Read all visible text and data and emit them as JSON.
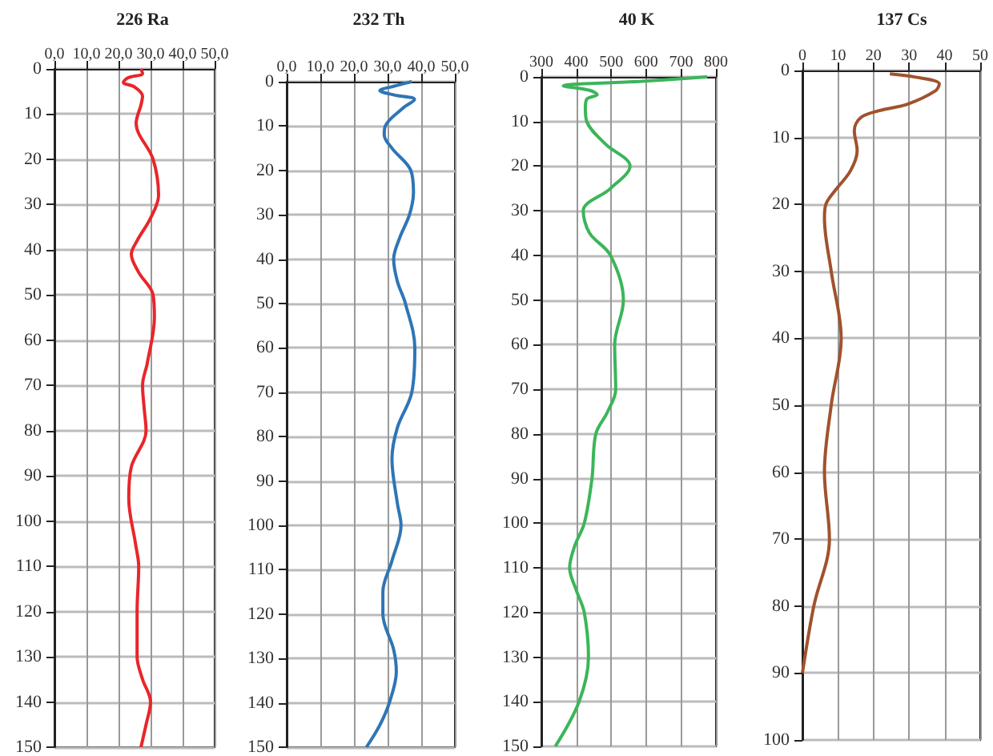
{
  "chart_data": [
    {
      "type": "line",
      "title": "226 Ra",
      "xlim": [
        0,
        50
      ],
      "xticks": [
        {
          "value": 0,
          "label": "0,0"
        },
        {
          "value": 10,
          "label": "10,0"
        },
        {
          "value": 20,
          "label": "20,0"
        },
        {
          "value": 30,
          "label": "30,0"
        },
        {
          "value": 40,
          "label": "40,0"
        },
        {
          "value": 50,
          "label": "50,0"
        }
      ],
      "ylim": [
        150,
        0
      ],
      "yticks": [
        0,
        10,
        20,
        30,
        40,
        50,
        60,
        70,
        80,
        90,
        100,
        110,
        120,
        130,
        140,
        150
      ],
      "grid": true,
      "marker": "none",
      "series": [
        {
          "color": "#e8262b",
          "x": [
            27,
            27.5,
            22.9,
            21.5,
            25,
            27.5,
            27,
            25.5,
            30.8,
            32.5,
            30,
            25.8,
            24,
            26.3,
            30.8,
            31.2,
            29,
            27.5,
            28,
            28.6,
            24,
            23.2,
            25.3,
            26.3,
            25.8,
            25.8,
            27.5,
            30,
            28.6,
            27
          ],
          "values": [
            0,
            1,
            2,
            3,
            4,
            6,
            8,
            12,
            20,
            28,
            33,
            38,
            41,
            45,
            50,
            55,
            65,
            70,
            75,
            80,
            88,
            95,
            105,
            110,
            120,
            130,
            135,
            140,
            145,
            150
          ]
        }
      ]
    },
    {
      "type": "line",
      "title": "232 Th",
      "xlim": [
        0,
        50
      ],
      "xticks": [
        {
          "value": 0,
          "label": "0,0"
        },
        {
          "value": 10,
          "label": "10,0"
        },
        {
          "value": 20,
          "label": "20,0"
        },
        {
          "value": 30,
          "label": "30,0"
        },
        {
          "value": 40,
          "label": "40,0"
        },
        {
          "value": 50,
          "label": "50,0"
        }
      ],
      "ylim": [
        150,
        0
      ],
      "yticks": [
        0,
        10,
        20,
        30,
        40,
        50,
        60,
        70,
        80,
        90,
        100,
        110,
        120,
        130,
        140,
        150
      ],
      "grid": true,
      "marker": "none",
      "series": [
        {
          "color": "#2e75b6",
          "x": [
            37.2,
            32,
            27.7,
            32,
            38,
            34.5,
            29.3,
            29,
            31.3,
            36.9,
            37.7,
            36.5,
            33.7,
            31.8,
            32.9,
            35.3,
            38.1,
            37.2,
            32.9,
            31.3,
            32.9,
            34,
            31.3,
            28.6,
            28.6,
            31.8,
            32.6,
            30.5,
            27.7,
            23.7
          ],
          "values": [
            0,
            1,
            2,
            3,
            4,
            6,
            10,
            12,
            15,
            20,
            25,
            30,
            35,
            40,
            45,
            50,
            60,
            70,
            78,
            85,
            95,
            100,
            108,
            115,
            120,
            128,
            133,
            140,
            145,
            150
          ]
        }
      ]
    },
    {
      "type": "line",
      "title": "40 K",
      "xlim": [
        300,
        800
      ],
      "xticks": [
        300,
        400,
        500,
        600,
        700,
        800
      ],
      "ylim": [
        150,
        0
      ],
      "yticks": [
        0,
        10,
        20,
        30,
        40,
        50,
        60,
        70,
        80,
        90,
        100,
        110,
        120,
        130,
        140,
        150
      ],
      "grid": true,
      "marker": "none",
      "series": [
        {
          "color": "#3cb55a",
          "x": [
            775,
            588,
            363,
            438,
            460,
            430,
            426,
            430,
            483,
            554,
            498,
            420,
            438,
            498,
            535,
            510,
            513,
            490,
            456,
            445,
            423,
            396,
            381,
            400,
            423,
            435,
            408,
            340
          ],
          "values": [
            0,
            1,
            2,
            3,
            4,
            5,
            7,
            10,
            15,
            20,
            25,
            30,
            35,
            40,
            50,
            60,
            70,
            75,
            80,
            90,
            100,
            105,
            110,
            115,
            120,
            130,
            140,
            150
          ]
        }
      ]
    },
    {
      "type": "line",
      "title": "137 Cs",
      "xlim": [
        0,
        50
      ],
      "xticks": [
        0,
        10,
        20,
        30,
        40,
        50
      ],
      "ylim": [
        100,
        0
      ],
      "yticks": [
        0,
        10,
        20,
        30,
        40,
        50,
        60,
        70,
        80,
        90,
        100
      ],
      "grid": true,
      "marker": "none",
      "series": [
        {
          "color": "#a0522d",
          "x": [
            24.6,
            31.9,
            38.5,
            37.5,
            29.7,
            21.6,
            16.5,
            14.6,
            15.4,
            13.5,
            9.1,
            6.6,
            6.2,
            8.1,
            10.9,
            8.1,
            6.2,
            7.6,
            3.2,
            0
          ],
          "values": [
            0.5,
            1,
            2,
            3,
            5,
            6,
            7,
            9,
            12,
            15,
            18,
            20,
            22,
            30,
            40,
            50,
            60,
            70,
            80,
            90
          ]
        }
      ]
    }
  ]
}
